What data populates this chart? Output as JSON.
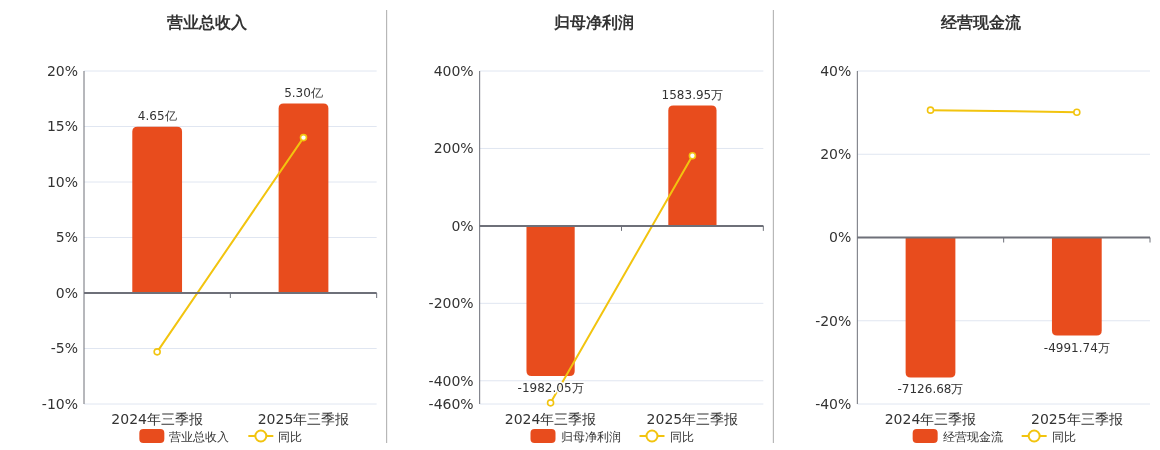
{
  "chart_data": [
    {
      "type": "bar",
      "title": "营业总收入",
      "categories": [
        "2024年三季报",
        "2025年三季报"
      ],
      "series": [
        {
          "name": "营业总收入",
          "color": "#e84c1d",
          "values": [
            4.65,
            5.3
          ],
          "value_labels": [
            "4.65亿",
            "5.30亿"
          ],
          "axis": "y2"
        },
        {
          "name": "同比",
          "type": "line",
          "color": "#f2c40f",
          "values": [
            -5.3,
            14.0
          ],
          "marker": "circle"
        }
      ],
      "ylim": [
        -10,
        20
      ],
      "yticks": [
        {
          "value": -10,
          "label": "-10%"
        },
        {
          "value": -5,
          "label": "-5%"
        },
        {
          "value": 0,
          "label": "0%"
        },
        {
          "value": 5,
          "label": "5%"
        },
        {
          "value": 10,
          "label": "10%"
        },
        {
          "value": 15,
          "label": "15%"
        },
        {
          "value": 20,
          "label": "20%"
        }
      ],
      "y2lim": [
        -3.11,
        6.21
      ],
      "grid": "y",
      "legend": "bottom"
    },
    {
      "type": "bar",
      "title": "归母净利润",
      "categories": [
        "2024年三季报",
        "2025年三季报"
      ],
      "series": [
        {
          "name": "归母净利润",
          "color": "#e84c1d",
          "values": [
            -1982.05,
            1583.95
          ],
          "value_labels": [
            "-1982.05万",
            "1583.95万"
          ],
          "axis": "y2"
        },
        {
          "name": "同比",
          "type": "line",
          "color": "#f2c40f",
          "values": [
            -457,
            181
          ],
          "marker": "circle"
        }
      ],
      "ylim": [
        -460,
        400
      ],
      "yticks": [
        {
          "value": -460,
          "label": "-460%"
        },
        {
          "value": -400,
          "label": "-400%"
        },
        {
          "value": -200,
          "label": "-200%"
        },
        {
          "value": 0,
          "label": "0%"
        },
        {
          "value": 200,
          "label": "200%"
        },
        {
          "value": 400,
          "label": "400%"
        }
      ],
      "y2lim": [
        -2350,
        2040
      ],
      "grid": "y",
      "legend": "bottom"
    },
    {
      "type": "bar",
      "title": "经营现金流",
      "categories": [
        "2024年三季报",
        "2025年三季报"
      ],
      "series": [
        {
          "name": "经营现金流",
          "color": "#e84c1d",
          "values": [
            -7126.68,
            -4991.74
          ],
          "value_labels": [
            "-7126.68万",
            "-4991.74万"
          ],
          "axis": "y2"
        },
        {
          "name": "同比",
          "type": "line",
          "color": "#f2c40f",
          "values": [
            30.6,
            30.1
          ],
          "marker": "circle"
        }
      ],
      "ylim": [
        -40,
        40
      ],
      "yticks": [
        {
          "value": -40,
          "label": "-40%"
        },
        {
          "value": -20,
          "label": "-20%"
        },
        {
          "value": 0,
          "label": "0%"
        },
        {
          "value": 20,
          "label": "20%"
        },
        {
          "value": 40,
          "label": "40%"
        }
      ],
      "y2lim": [
        -8480,
        8480
      ],
      "grid": "y",
      "legend": "bottom"
    }
  ]
}
